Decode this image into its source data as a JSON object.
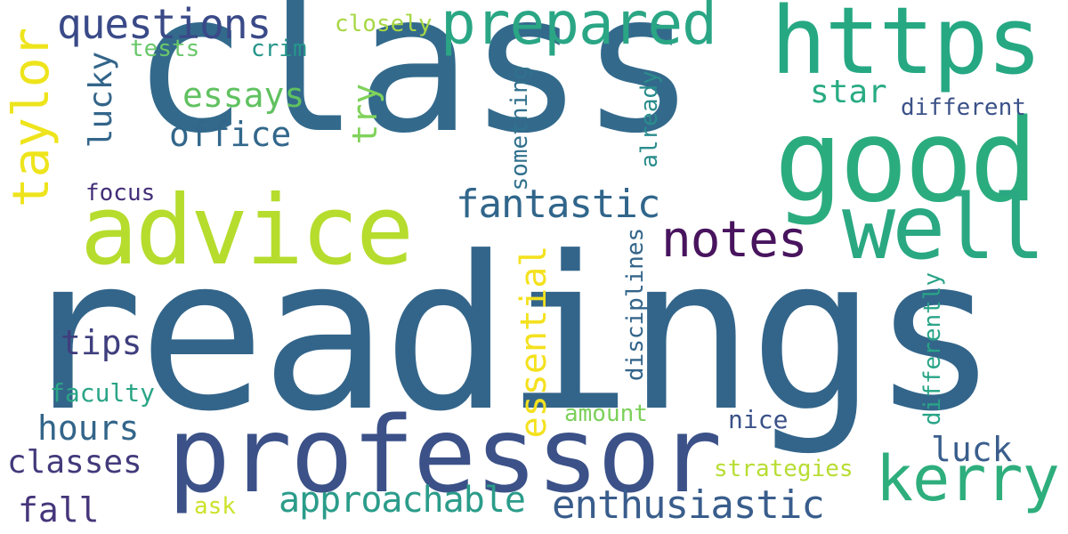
{
  "cloud": {
    "background": "#ffffff",
    "words": [
      {
        "text": "readings",
        "color": "#33658a"
      },
      {
        "text": "class",
        "color": "#336a8c"
      },
      {
        "text": "professor",
        "color": "#3b5188"
      },
      {
        "text": "good",
        "color": "#2bac7f"
      },
      {
        "text": "https",
        "color": "#26a883"
      },
      {
        "text": "advice",
        "color": "#b6dc2d"
      },
      {
        "text": "well",
        "color": "#2aa882"
      },
      {
        "text": "kerry",
        "color": "#2eae7c"
      },
      {
        "text": "prepared",
        "color": "#2aa685"
      },
      {
        "text": "notes",
        "color": "#48145e"
      },
      {
        "text": "questions",
        "color": "#3a4a88"
      },
      {
        "text": "fantastic",
        "color": "#31668b"
      },
      {
        "text": "enthusiastic",
        "color": "#395d8c"
      },
      {
        "text": "approachable",
        "color": "#2b9c8a"
      },
      {
        "text": "essays",
        "color": "#60c160"
      },
      {
        "text": "office",
        "color": "#32678b"
      },
      {
        "text": "hours",
        "color": "#33658a"
      },
      {
        "text": "tips",
        "color": "#3f3e7e"
      },
      {
        "text": "classes",
        "color": "#423a7b"
      },
      {
        "text": "fall",
        "color": "#45357a"
      },
      {
        "text": "luck",
        "color": "#3a5e8c"
      },
      {
        "text": "star",
        "color": "#29ab83"
      },
      {
        "text": "different",
        "color": "#3b5188"
      },
      {
        "text": "nice",
        "color": "#3b5188"
      },
      {
        "text": "strategies",
        "color": "#b8dd34"
      },
      {
        "text": "amount",
        "color": "#7cd05a"
      },
      {
        "text": "faculty",
        "color": "#2aa586"
      },
      {
        "text": "focus",
        "color": "#432e78"
      },
      {
        "text": "closely",
        "color": "#a8d744"
      },
      {
        "text": "tests",
        "color": "#6ac76a"
      },
      {
        "text": "crim",
        "color": "#26968b"
      },
      {
        "text": "ask",
        "color": "#cde22a"
      },
      {
        "text": "taylor",
        "color": "#eee41c"
      },
      {
        "text": "lucky",
        "color": "#33658a"
      },
      {
        "text": "try",
        "color": "#7fd25a"
      },
      {
        "text": "something",
        "color": "#31718d"
      },
      {
        "text": "already",
        "color": "#2a8c8c"
      },
      {
        "text": "essential",
        "color": "#f4e11f"
      },
      {
        "text": "disciplines",
        "color": "#33658a"
      },
      {
        "text": "differently",
        "color": "#29a487"
      }
    ]
  }
}
